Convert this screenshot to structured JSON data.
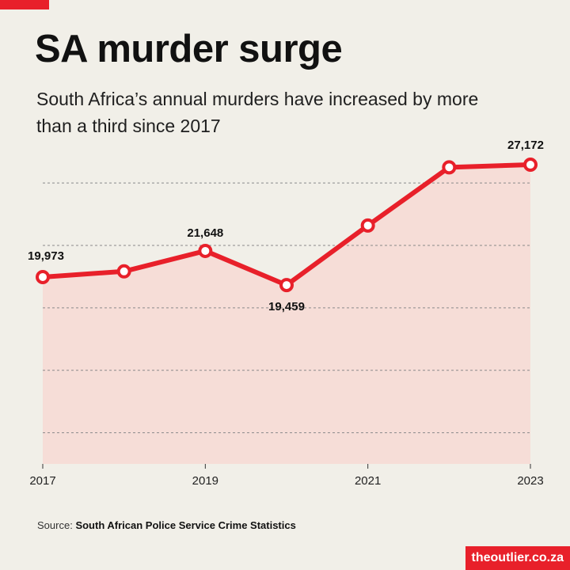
{
  "title": "SA murder surge",
  "subtitle": "South Africa’s annual murders have increased by more than a third since 2017",
  "source_label": "Source:",
  "source_name": "South African Police Service Crime Statistics",
  "brand": "theoutlier.co.za",
  "colors": {
    "accent": "#e8202a",
    "area": "#f6ddd7",
    "grid": "#8a8a8a"
  },
  "chart_data": {
    "type": "line",
    "x": [
      2017,
      2018,
      2019,
      2020,
      2021,
      2022,
      2023
    ],
    "values": [
      19973,
      20336,
      21648,
      19459,
      23276,
      27005,
      27172
    ],
    "labels": [
      "19,973",
      "",
      "21,648",
      "19,459",
      "",
      "",
      "27,172"
    ],
    "xticks": [
      "2017",
      "2019",
      "2021",
      "2023"
    ],
    "xtick_values": [
      2017,
      2019,
      2021,
      2023
    ],
    "ylim": [
      8000,
      29000
    ],
    "grid_values": [
      10000,
      14000,
      18000,
      22000,
      26000
    ],
    "grid": true,
    "xlabel": "",
    "ylabel": ""
  }
}
